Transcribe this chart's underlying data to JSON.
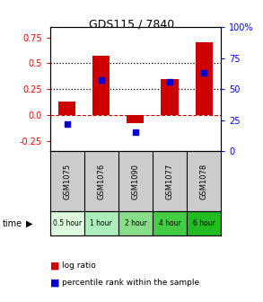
{
  "title": "GDS115 / 7840",
  "samples": [
    "GSM1075",
    "GSM1076",
    "GSM1090",
    "GSM1077",
    "GSM1078"
  ],
  "time_labels": [
    "0.5 hour",
    "1 hour",
    "2 hour",
    "4 hour",
    "6 hour"
  ],
  "time_colors": [
    "#ddfcdd",
    "#aaeebb",
    "#88dd88",
    "#44cc44",
    "#22bb22"
  ],
  "log_ratios": [
    0.13,
    0.57,
    -0.08,
    0.35,
    0.7
  ],
  "percentile_ranks": [
    22,
    57,
    15,
    56,
    63
  ],
  "bar_color": "#cc0000",
  "dot_color": "#0000cc",
  "ylim_left": [
    -0.35,
    0.85
  ],
  "ylim_right": [
    0,
    100
  ],
  "yticks_left": [
    -0.25,
    0.0,
    0.25,
    0.5,
    0.75
  ],
  "yticks_right": [
    0,
    25,
    50,
    75,
    100
  ],
  "hline_dashed_red": 0.0,
  "hline_dotted_black": [
    0.25,
    0.5
  ],
  "background_color": "#ffffff",
  "plot_bg_color": "#ffffff",
  "header_bg_color": "#cccccc",
  "legend_log_ratio_color": "#cc0000",
  "legend_pct_color": "#0000cc",
  "bar_width": 0.5
}
